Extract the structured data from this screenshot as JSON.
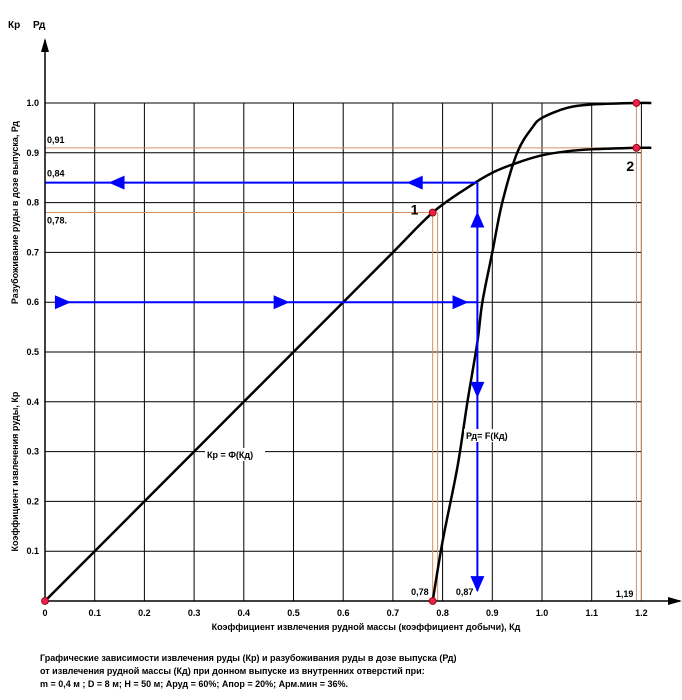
{
  "chart_data": {
    "type": "line",
    "axis_symbols": {
      "left_top": "Кр",
      "right_top": "Рд"
    },
    "ylabel_upper": "Разубоживание руды в дозе выпуска,  Рд",
    "ylabel_lower": "Коэффициент извлечения руды,  Кр",
    "xlabel": "Коэффициент извлечения рудной массы (коэффициент добычи),   Кд",
    "xlim": [
      0,
      1.2
    ],
    "ylim": [
      0,
      1.0
    ],
    "x_ticks": [
      "0",
      "0.1",
      "0.2",
      "0.3",
      "0.4",
      "0.5",
      "0.6",
      "0.7",
      "0.8",
      "0.9",
      "1.0",
      "1.1",
      "1.2"
    ],
    "y_ticks": [
      "0.1",
      "0.2",
      "0.3",
      "0.4",
      "0.5",
      "0.6",
      "0.7",
      "0.8",
      "0.9",
      "1.0"
    ],
    "grid": true,
    "series": [
      {
        "name": "Кр = Ф(Кд)",
        "x": [
          0,
          0.1,
          0.2,
          0.3,
          0.4,
          0.5,
          0.6,
          0.7,
          0.78,
          0.85,
          0.9,
          0.95,
          1.0,
          1.05,
          1.1,
          1.19,
          1.22
        ],
        "y": [
          0,
          0.1,
          0.2,
          0.3,
          0.4,
          0.5,
          0.6,
          0.7,
          0.78,
          0.83,
          0.86,
          0.88,
          0.895,
          0.903,
          0.907,
          0.91,
          0.91
        ]
      },
      {
        "name": "Рд= F(Кд)",
        "x": [
          0.78,
          0.8,
          0.83,
          0.85,
          0.87,
          0.88,
          0.9,
          0.92,
          0.95,
          0.98,
          1.0,
          1.05,
          1.1,
          1.19,
          1.22
        ],
        "y": [
          0,
          0.12,
          0.27,
          0.4,
          0.52,
          0.6,
          0.7,
          0.8,
          0.9,
          0.95,
          0.97,
          0.99,
          0.997,
          1.0,
          1.0
        ]
      }
    ],
    "annotations": {
      "point_labels": [
        "1",
        "2"
      ],
      "y_value_labels": [
        "0,91",
        "0,84",
        "0,78."
      ],
      "x_value_labels": [
        "0,78",
        "0,87",
        "1,19"
      ],
      "curve_labels": [
        "Кр = Ф(Кд)",
        "Рд= F(Кд)"
      ],
      "points": [
        {
          "label": "1",
          "x": 0.78,
          "y": 0.78
        },
        {
          "label": "2",
          "x": 1.19,
          "y": 0.91
        }
      ],
      "markers": [
        {
          "x": 0,
          "y": 0
        },
        {
          "x": 0.78,
          "y": 0
        },
        {
          "x": 0.78,
          "y": 0.78
        },
        {
          "x": 1.19,
          "y": 0.91
        },
        {
          "x": 1.19,
          "y": 1.0
        }
      ]
    }
  },
  "caption": {
    "line1": "Графические зависимости извлечения руды (Кр) и разубоживания руды в дозе выпуска (Рд)",
    "line2": "от извлечения рудной массы (Кд) при донном выпуске из внутренних отверстий при:",
    "line3": "m = 0,4 м   ;  D = 8 м;  Н = 50 м;  Аруд = 60%;  Апор = 20%;  Арм.мин = 36%."
  }
}
